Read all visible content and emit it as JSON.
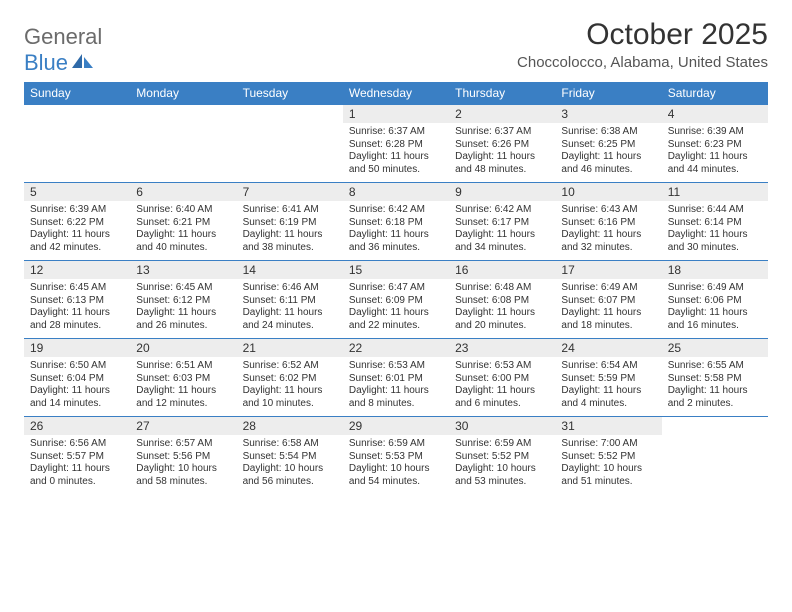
{
  "logo": {
    "text_general": "General",
    "text_blue": "Blue"
  },
  "title": "October 2025",
  "location": "Choccolocco, Alabama, United States",
  "colors": {
    "header_bg": "#3a7fc4",
    "header_text": "#ffffff",
    "daynum_bg": "#ededed",
    "text": "#333333",
    "row_border": "#3a7fc4",
    "logo_gray": "#6b6b6b",
    "logo_blue": "#3a7fc4",
    "page_bg": "#ffffff"
  },
  "fonts": {
    "title_size": 30,
    "location_size": 15,
    "dayhead_size": 12,
    "daynum_size": 12,
    "body_size": 10
  },
  "weekdays": [
    "Sunday",
    "Monday",
    "Tuesday",
    "Wednesday",
    "Thursday",
    "Friday",
    "Saturday"
  ],
  "weeks": [
    [
      {
        "n": "",
        "lines": [
          "",
          "",
          "",
          ""
        ]
      },
      {
        "n": "",
        "lines": [
          "",
          "",
          "",
          ""
        ]
      },
      {
        "n": "",
        "lines": [
          "",
          "",
          "",
          ""
        ]
      },
      {
        "n": "1",
        "lines": [
          "Sunrise: 6:37 AM",
          "Sunset: 6:28 PM",
          "Daylight: 11 hours",
          "and 50 minutes."
        ]
      },
      {
        "n": "2",
        "lines": [
          "Sunrise: 6:37 AM",
          "Sunset: 6:26 PM",
          "Daylight: 11 hours",
          "and 48 minutes."
        ]
      },
      {
        "n": "3",
        "lines": [
          "Sunrise: 6:38 AM",
          "Sunset: 6:25 PM",
          "Daylight: 11 hours",
          "and 46 minutes."
        ]
      },
      {
        "n": "4",
        "lines": [
          "Sunrise: 6:39 AM",
          "Sunset: 6:23 PM",
          "Daylight: 11 hours",
          "and 44 minutes."
        ]
      }
    ],
    [
      {
        "n": "5",
        "lines": [
          "Sunrise: 6:39 AM",
          "Sunset: 6:22 PM",
          "Daylight: 11 hours",
          "and 42 minutes."
        ]
      },
      {
        "n": "6",
        "lines": [
          "Sunrise: 6:40 AM",
          "Sunset: 6:21 PM",
          "Daylight: 11 hours",
          "and 40 minutes."
        ]
      },
      {
        "n": "7",
        "lines": [
          "Sunrise: 6:41 AM",
          "Sunset: 6:19 PM",
          "Daylight: 11 hours",
          "and 38 minutes."
        ]
      },
      {
        "n": "8",
        "lines": [
          "Sunrise: 6:42 AM",
          "Sunset: 6:18 PM",
          "Daylight: 11 hours",
          "and 36 minutes."
        ]
      },
      {
        "n": "9",
        "lines": [
          "Sunrise: 6:42 AM",
          "Sunset: 6:17 PM",
          "Daylight: 11 hours",
          "and 34 minutes."
        ]
      },
      {
        "n": "10",
        "lines": [
          "Sunrise: 6:43 AM",
          "Sunset: 6:16 PM",
          "Daylight: 11 hours",
          "and 32 minutes."
        ]
      },
      {
        "n": "11",
        "lines": [
          "Sunrise: 6:44 AM",
          "Sunset: 6:14 PM",
          "Daylight: 11 hours",
          "and 30 minutes."
        ]
      }
    ],
    [
      {
        "n": "12",
        "lines": [
          "Sunrise: 6:45 AM",
          "Sunset: 6:13 PM",
          "Daylight: 11 hours",
          "and 28 minutes."
        ]
      },
      {
        "n": "13",
        "lines": [
          "Sunrise: 6:45 AM",
          "Sunset: 6:12 PM",
          "Daylight: 11 hours",
          "and 26 minutes."
        ]
      },
      {
        "n": "14",
        "lines": [
          "Sunrise: 6:46 AM",
          "Sunset: 6:11 PM",
          "Daylight: 11 hours",
          "and 24 minutes."
        ]
      },
      {
        "n": "15",
        "lines": [
          "Sunrise: 6:47 AM",
          "Sunset: 6:09 PM",
          "Daylight: 11 hours",
          "and 22 minutes."
        ]
      },
      {
        "n": "16",
        "lines": [
          "Sunrise: 6:48 AM",
          "Sunset: 6:08 PM",
          "Daylight: 11 hours",
          "and 20 minutes."
        ]
      },
      {
        "n": "17",
        "lines": [
          "Sunrise: 6:49 AM",
          "Sunset: 6:07 PM",
          "Daylight: 11 hours",
          "and 18 minutes."
        ]
      },
      {
        "n": "18",
        "lines": [
          "Sunrise: 6:49 AM",
          "Sunset: 6:06 PM",
          "Daylight: 11 hours",
          "and 16 minutes."
        ]
      }
    ],
    [
      {
        "n": "19",
        "lines": [
          "Sunrise: 6:50 AM",
          "Sunset: 6:04 PM",
          "Daylight: 11 hours",
          "and 14 minutes."
        ]
      },
      {
        "n": "20",
        "lines": [
          "Sunrise: 6:51 AM",
          "Sunset: 6:03 PM",
          "Daylight: 11 hours",
          "and 12 minutes."
        ]
      },
      {
        "n": "21",
        "lines": [
          "Sunrise: 6:52 AM",
          "Sunset: 6:02 PM",
          "Daylight: 11 hours",
          "and 10 minutes."
        ]
      },
      {
        "n": "22",
        "lines": [
          "Sunrise: 6:53 AM",
          "Sunset: 6:01 PM",
          "Daylight: 11 hours",
          "and 8 minutes."
        ]
      },
      {
        "n": "23",
        "lines": [
          "Sunrise: 6:53 AM",
          "Sunset: 6:00 PM",
          "Daylight: 11 hours",
          "and 6 minutes."
        ]
      },
      {
        "n": "24",
        "lines": [
          "Sunrise: 6:54 AM",
          "Sunset: 5:59 PM",
          "Daylight: 11 hours",
          "and 4 minutes."
        ]
      },
      {
        "n": "25",
        "lines": [
          "Sunrise: 6:55 AM",
          "Sunset: 5:58 PM",
          "Daylight: 11 hours",
          "and 2 minutes."
        ]
      }
    ],
    [
      {
        "n": "26",
        "lines": [
          "Sunrise: 6:56 AM",
          "Sunset: 5:57 PM",
          "Daylight: 11 hours",
          "and 0 minutes."
        ]
      },
      {
        "n": "27",
        "lines": [
          "Sunrise: 6:57 AM",
          "Sunset: 5:56 PM",
          "Daylight: 10 hours",
          "and 58 minutes."
        ]
      },
      {
        "n": "28",
        "lines": [
          "Sunrise: 6:58 AM",
          "Sunset: 5:54 PM",
          "Daylight: 10 hours",
          "and 56 minutes."
        ]
      },
      {
        "n": "29",
        "lines": [
          "Sunrise: 6:59 AM",
          "Sunset: 5:53 PM",
          "Daylight: 10 hours",
          "and 54 minutes."
        ]
      },
      {
        "n": "30",
        "lines": [
          "Sunrise: 6:59 AM",
          "Sunset: 5:52 PM",
          "Daylight: 10 hours",
          "and 53 minutes."
        ]
      },
      {
        "n": "31",
        "lines": [
          "Sunrise: 7:00 AM",
          "Sunset: 5:52 PM",
          "Daylight: 10 hours",
          "and 51 minutes."
        ]
      },
      {
        "n": "",
        "lines": [
          "",
          "",
          "",
          ""
        ]
      }
    ]
  ]
}
